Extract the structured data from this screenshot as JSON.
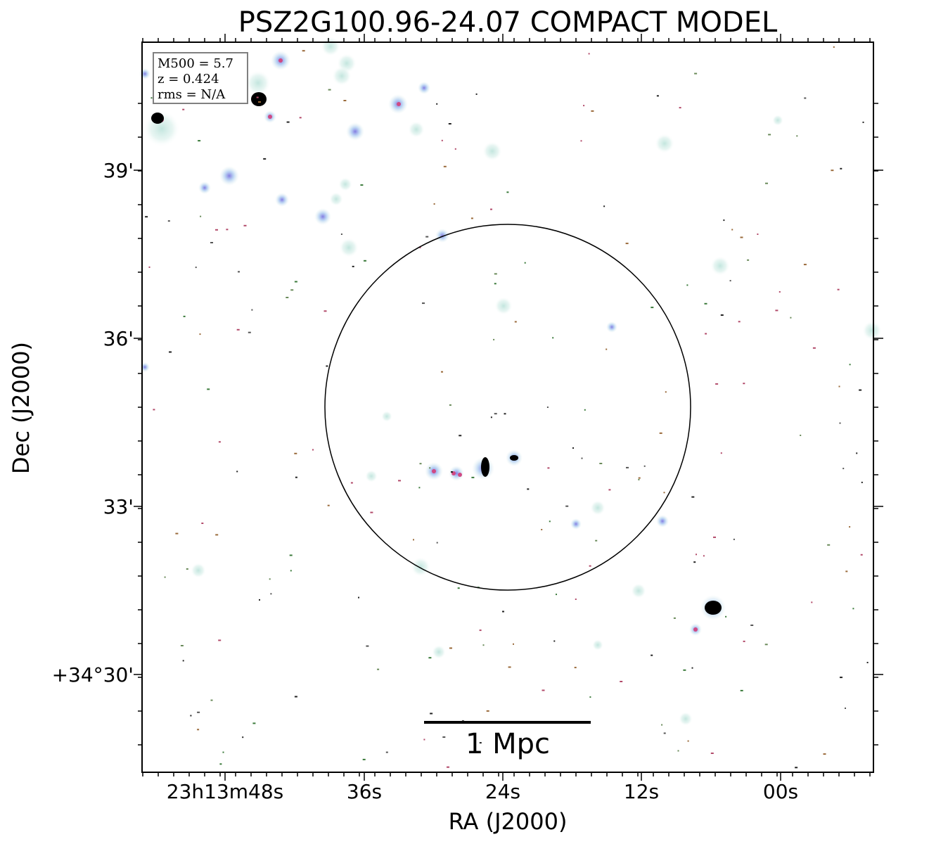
{
  "title": "PSZ2G100.96-24.07 COMPACT MODEL",
  "info_box": {
    "mass": "M500 = 5.7",
    "redshift": "z = 0.424",
    "rms": "rms = N/A"
  },
  "axes": {
    "x_label": "RA (J2000)",
    "y_label": "Dec (J2000)",
    "x_ticks": [
      "23h13m48s",
      "36s",
      "24s",
      "12s",
      "00s"
    ],
    "y_ticks": [
      "39'",
      "36'",
      "33'",
      "+34°30'"
    ]
  },
  "scale_bar": {
    "label": "1 Mpc"
  },
  "colors": {
    "background": "#ffffff",
    "frame": "#000000",
    "halo": "#d2ece6",
    "source_blue": "#8e86e6",
    "source_pink": "#d66a9e",
    "source_core": "#000000",
    "noise_brown": "#9a6a3a",
    "noise_green": "#3a7a3a"
  }
}
